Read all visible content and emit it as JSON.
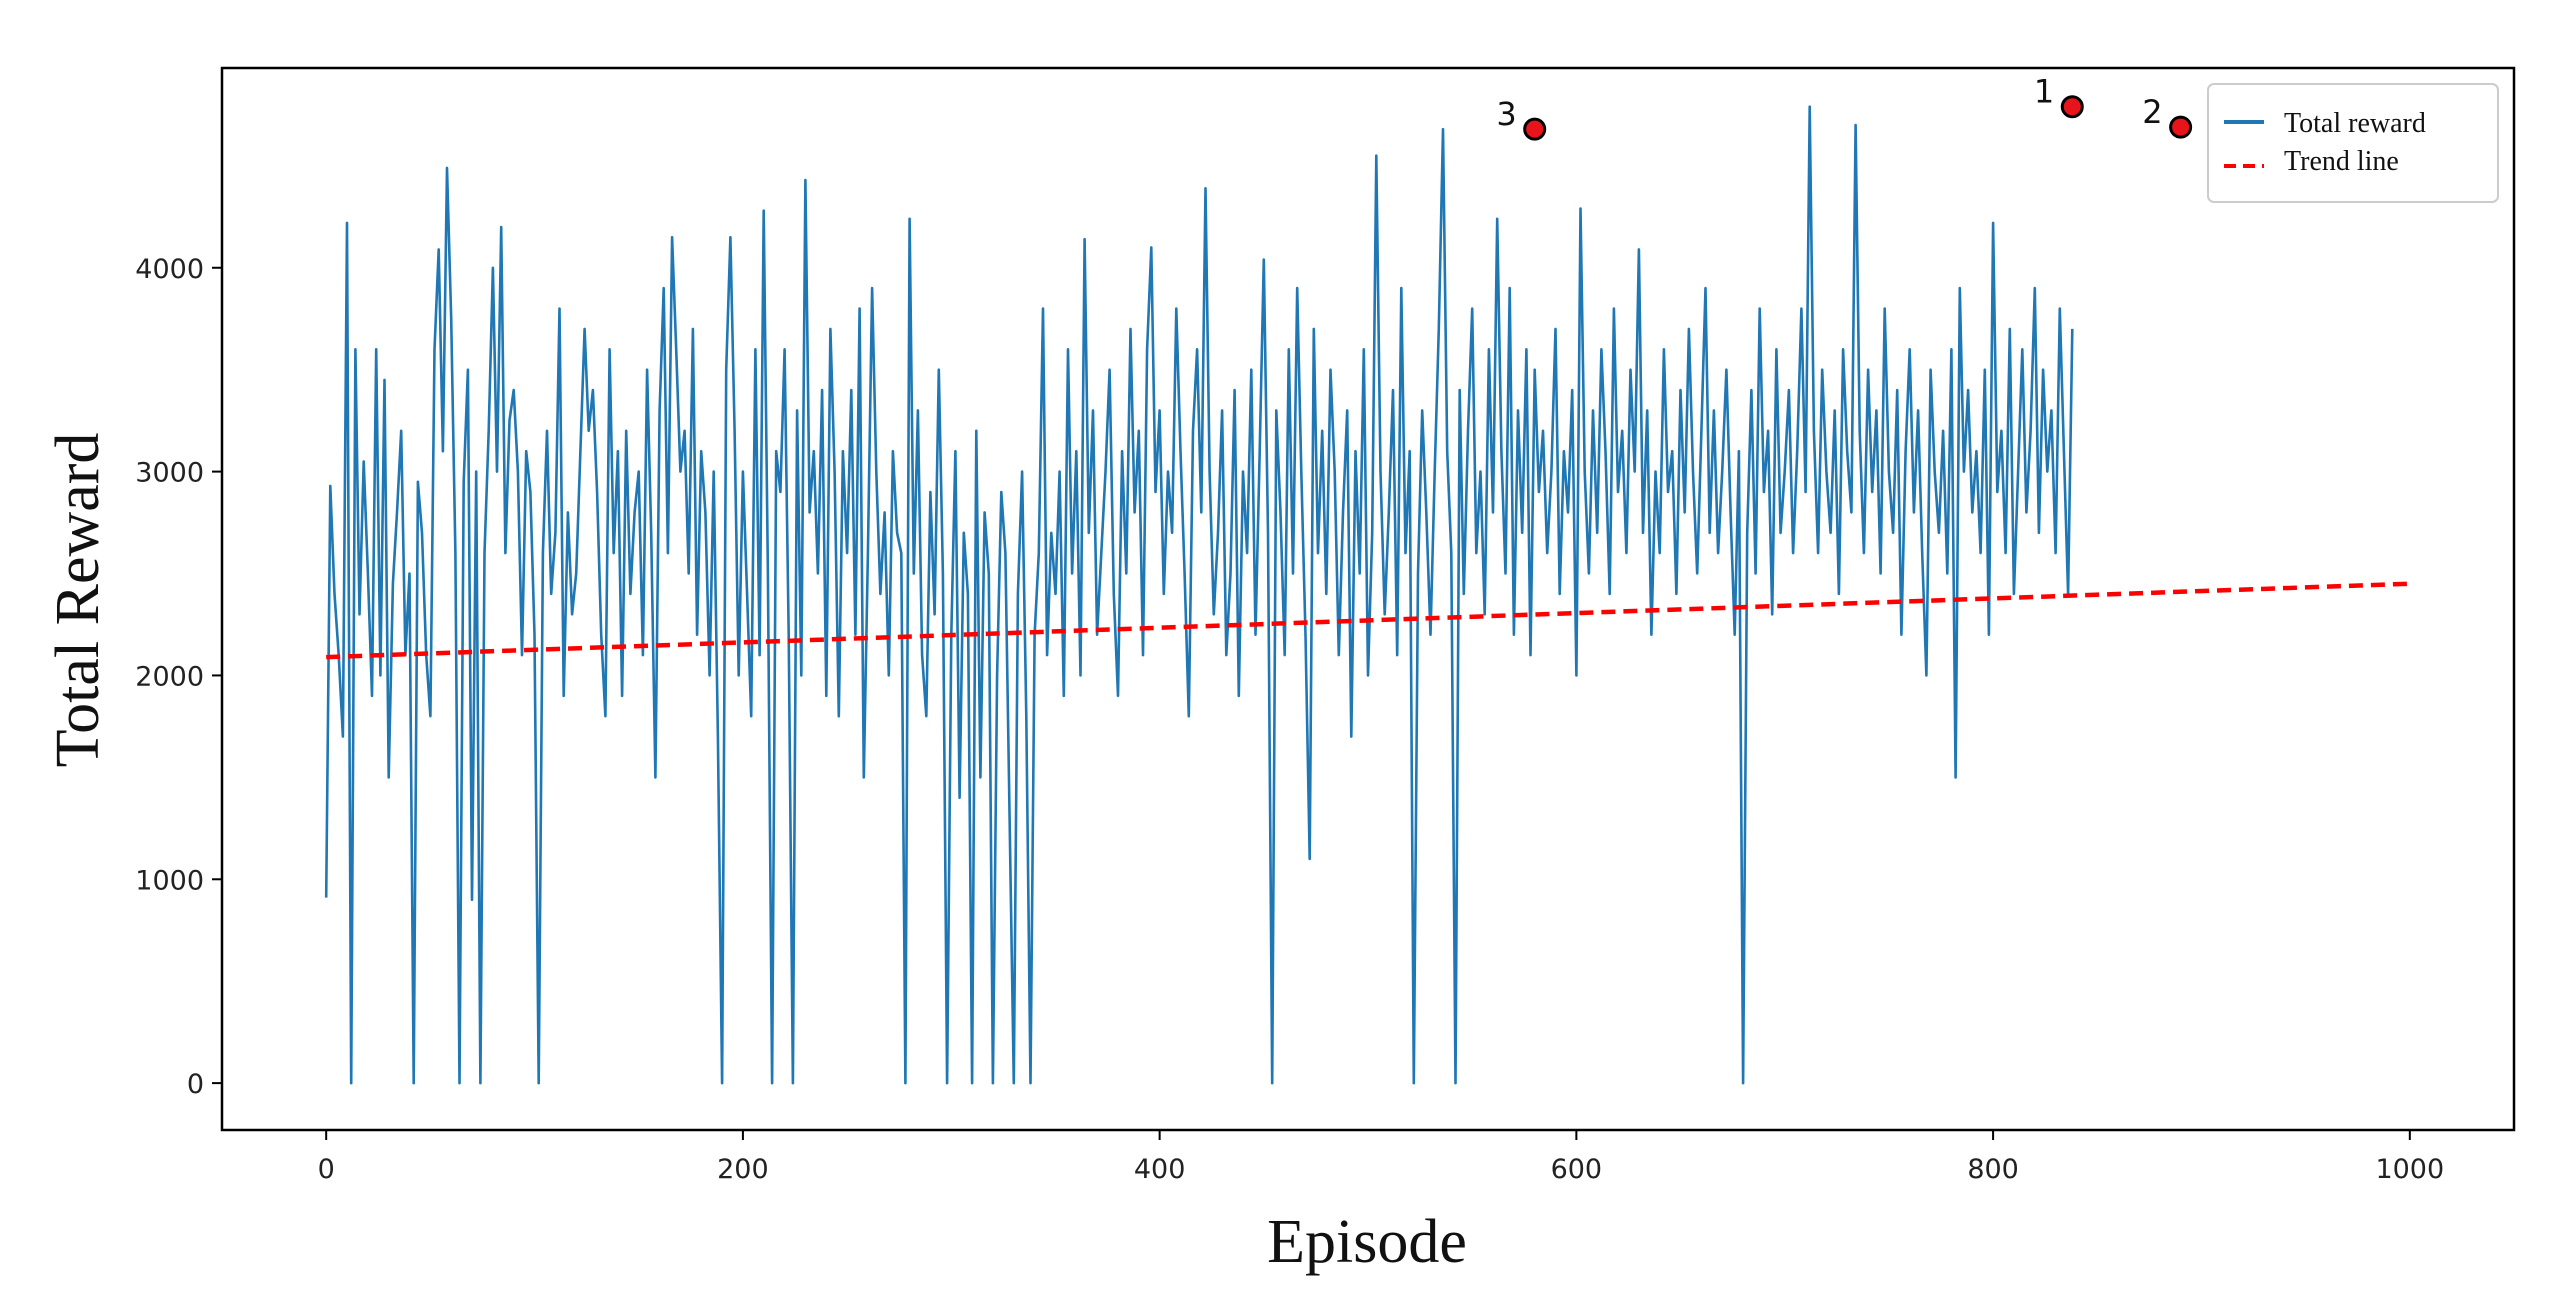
{
  "chart_data": {
    "type": "line",
    "title": "",
    "xlabel": "Episode",
    "ylabel": "Total Reward",
    "xlim": [
      -50,
      1050
    ],
    "ylim": [
      -230,
      4980
    ],
    "xticks": [
      0,
      200,
      400,
      600,
      800,
      1000
    ],
    "yticks": [
      0,
      1000,
      2000,
      3000,
      4000
    ],
    "grid": false,
    "legend_position": "top-right",
    "series": [
      {
        "name": "Total reward",
        "style": "solid",
        "color": "#1f77b4",
        "x_start": 0,
        "x_step": 2,
        "values": [
          910,
          2930,
          2400,
          2100,
          1700,
          4220,
          0,
          3600,
          2300,
          3050,
          2500,
          1900,
          3600,
          2000,
          3450,
          1500,
          2450,
          2800,
          3200,
          2100,
          2500,
          0,
          2950,
          2700,
          2100,
          1800,
          3600,
          4090,
          3100,
          4490,
          3750,
          2600,
          0,
          2950,
          3500,
          900,
          3000,
          0,
          2600,
          3200,
          4000,
          3000,
          4200,
          2600,
          3250,
          3400,
          3000,
          2100,
          3100,
          2900,
          2200,
          0,
          2600,
          3200,
          2400,
          2700,
          3800,
          1900,
          2800,
          2300,
          2500,
          3100,
          3700,
          3200,
          3400,
          2900,
          2200,
          1800,
          3600,
          2600,
          3100,
          1900,
          3200,
          2400,
          2800,
          3000,
          2100,
          3500,
          2700,
          1500,
          3300,
          3900,
          2600,
          4150,
          3600,
          3000,
          3200,
          2500,
          3700,
          2200,
          3100,
          2800,
          2000,
          3000,
          1700,
          0,
          3500,
          4150,
          3200,
          2000,
          3000,
          2400,
          1800,
          3600,
          2100,
          4280,
          2500,
          0,
          3100,
          2900,
          3600,
          2200,
          0,
          3300,
          2000,
          4430,
          2800,
          3100,
          2500,
          3400,
          1900,
          3700,
          3000,
          1800,
          3100,
          2600,
          3400,
          2200,
          3800,
          1500,
          2600,
          3900,
          3000,
          2400,
          2800,
          2000,
          3100,
          2700,
          2600,
          0,
          4240,
          2500,
          3300,
          2100,
          1800,
          2900,
          2300,
          3500,
          2500,
          0,
          2200,
          3100,
          1400,
          2700,
          2400,
          0,
          3200,
          1500,
          2800,
          2500,
          0,
          2000,
          2900,
          2600,
          1300,
          0,
          2400,
          3000,
          1800,
          0,
          2200,
          2600,
          3800,
          2100,
          2700,
          2400,
          3000,
          1900,
          3600,
          2500,
          3100,
          2000,
          4140,
          2700,
          3300,
          2200,
          2600,
          3000,
          3500,
          2400,
          1900,
          3100,
          2500,
          3700,
          2800,
          3200,
          2100,
          3600,
          4100,
          2900,
          3300,
          2400,
          3000,
          2700,
          3800,
          3100,
          2500,
          1800,
          3200,
          3600,
          2800,
          4390,
          3000,
          2300,
          2700,
          3300,
          2100,
          2500,
          3400,
          1900,
          3000,
          2600,
          3500,
          2200,
          3100,
          4040,
          2700,
          0,
          3300,
          2800,
          2100,
          3600,
          2500,
          3900,
          3000,
          2200,
          1100,
          3700,
          2600,
          3200,
          2400,
          3500,
          3000,
          2100,
          2800,
          3300,
          1700,
          3100,
          2500,
          3600,
          2000,
          2700,
          4550,
          3000,
          2300,
          2800,
          3400,
          2100,
          3900,
          2600,
          3100,
          0,
          2500,
          3300,
          2800,
          2200,
          3000,
          3700,
          4680,
          3100,
          2600,
          0,
          3400,
          2400,
          3200,
          3800,
          2600,
          3000,
          2300,
          3600,
          2800,
          4240,
          3100,
          2500,
          3900,
          2200,
          3300,
          2700,
          3600,
          2100,
          3500,
          2900,
          3200,
          2600,
          3000,
          3700,
          2400,
          3100,
          2800,
          3400,
          2000,
          4290,
          3000,
          2500,
          3300,
          2700,
          3600,
          3100,
          2400,
          3800,
          2900,
          3200,
          2600,
          3500,
          3000,
          4090,
          2700,
          3300,
          2200,
          3000,
          2600,
          3600,
          2900,
          3100,
          2400,
          3400,
          2800,
          3700,
          3000,
          2500,
          3200,
          3900,
          2700,
          3300,
          2600,
          3000,
          3500,
          2800,
          2200,
          3100,
          0,
          2700,
          3400,
          2500,
          3800,
          2900,
          3200,
          2300,
          3600,
          2700,
          3000,
          3400,
          2600,
          3100,
          3800,
          2900,
          4790,
          3200,
          2600,
          3500,
          3000,
          2700,
          3300,
          2400,
          3600,
          3100,
          2800,
          4700,
          3200,
          2600,
          3500,
          2900,
          3300,
          2500,
          3800,
          3000,
          2700,
          3400,
          2200,
          3100,
          3600,
          2800,
          3300,
          2600,
          2000,
          3500,
          3000,
          2700,
          3200,
          2500,
          3600,
          1500,
          3900,
          3000,
          3400,
          2800,
          3100,
          2600,
          3500,
          2200,
          4220,
          2900,
          3200,
          2600,
          3700,
          2400,
          3000,
          3600,
          2800,
          3200,
          3900,
          2700,
          3500,
          3000,
          3300,
          2600,
          3800,
          3100,
          2400,
          3700
        ]
      },
      {
        "name": "Trend line",
        "style": "dashed",
        "color": "#ff0000",
        "x": [
          0,
          1000
        ],
        "values": [
          2090,
          2450
        ]
      }
    ],
    "annotations": [
      {
        "label": "1",
        "x": 838,
        "y": 4790
      },
      {
        "label": "2",
        "x": 890,
        "y": 4690
      },
      {
        "label": "3",
        "x": 580,
        "y": 4680
      }
    ]
  }
}
